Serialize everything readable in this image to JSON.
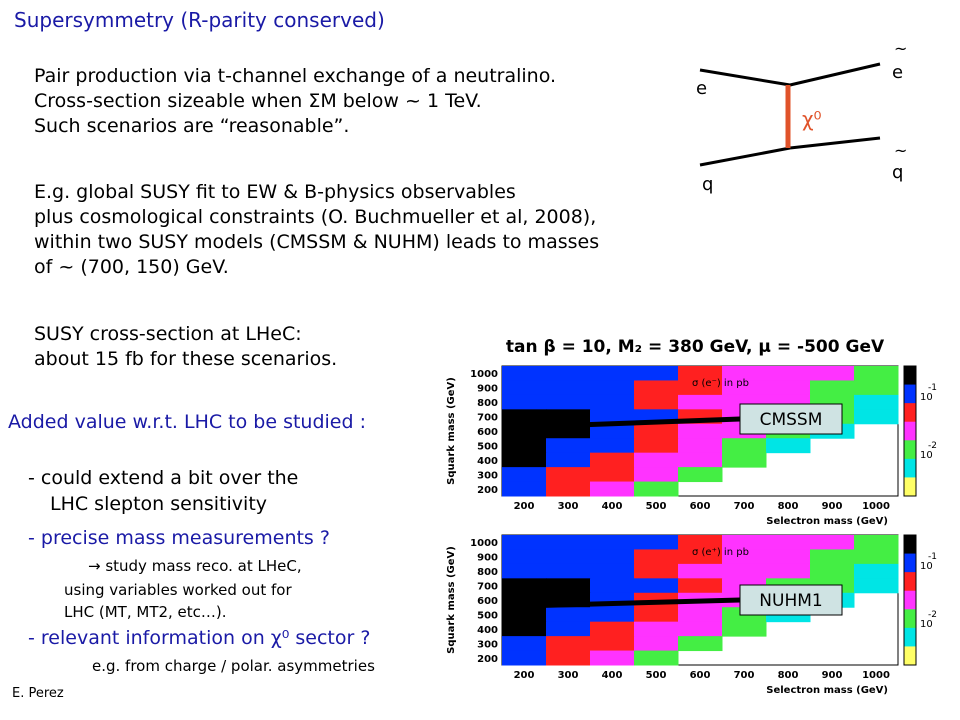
{
  "slide": {
    "title": "Supersymmetry (R-parity conserved)",
    "paragraph1": [
      "Pair production via t-channel exchange of a neutralino.",
      "Cross-section sizeable when ΣM below ~ 1 TeV.",
      "Such scenarios are “reasonable”."
    ],
    "paragraph2": [
      "E.g. global SUSY fit to EW & B-physics observables",
      "plus cosmological constraints (O. Buchmueller et al, 2008),",
      "within two SUSY models (CMSSM & NUHM) leads to masses",
      "of ~ (700, 150) GeV."
    ],
    "paragraph3": [
      "SUSY cross-section at LHeC:",
      "about 15 fb for these scenarios."
    ],
    "added_value": "Added value w.r.t. LHC to be studied :",
    "bullets": [
      "- could extend a bit over the",
      "LHC slepton sensitivity",
      "- precise mass measurements ?"
    ],
    "sub_bullets": [
      "→ study mass reco. at LHeC,",
      "using variables worked out for",
      "LHC (MT, MT2, etc…)."
    ],
    "bullet_relevant": "- relevant information on χ⁰ sector ?",
    "sub_bullet_eg": "e.g. from charge / polar. asymmetries",
    "author": "E. Perez"
  },
  "feynman": {
    "e_in": "e",
    "q_in": "q",
    "e_out": "e",
    "q_out": "q",
    "tilde": "~",
    "exchange": "χ⁰",
    "colors": {
      "propagator": "#e0532a",
      "labels": "#000000"
    }
  },
  "figure": {
    "header": "tan β = 10, M₂ = 380 GeV, μ = -500 GeV",
    "panels": [
      {
        "legend": "σ (e⁻) in pb",
        "model": "CMSSM"
      },
      {
        "legend": "σ (e⁺) in pb",
        "model": "NUHM1"
      }
    ],
    "ylabel": "Squark mass (GeV)",
    "xlabel": "Selectron mass (GeV)",
    "yticks": [
      "1000",
      "900",
      "800",
      "700",
      "600",
      "500",
      "400",
      "300",
      "200"
    ],
    "xticks": [
      "200",
      "300",
      "400",
      "500",
      "600",
      "700",
      "800",
      "900",
      "1000"
    ],
    "scale_labels": [
      "-1",
      "10",
      "-2",
      "10"
    ],
    "band_colors": [
      "#000000",
      "#0033ff",
      "#ff2020",
      "#ff33ff",
      "#44ee44",
      "#00e5e5",
      "#ffff66"
    ]
  }
}
